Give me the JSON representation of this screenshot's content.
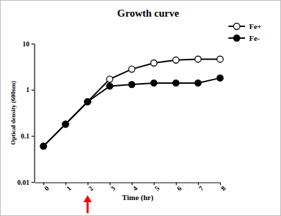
{
  "chart_data": {
    "type": "line",
    "title": "Growth curve",
    "x_label": "Time (hr)",
    "y_label": "Optical density (600nm)",
    "x": [
      0,
      1,
      2,
      3,
      4,
      5,
      6,
      7,
      8
    ],
    "xlim": [
      -0.4,
      8
    ],
    "xticks": [
      0,
      1,
      2,
      3,
      4,
      5,
      6,
      7,
      8
    ],
    "ylim": [
      0.01,
      10
    ],
    "yticks": [
      0.01,
      0.1,
      1,
      10
    ],
    "log": "y",
    "grid": false,
    "legend": "right",
    "series": [
      {
        "name": "Fe+",
        "color": "#000000",
        "marker": "circle-open",
        "line_style": "solid",
        "values": [
          0.06,
          0.18,
          0.55,
          1.7,
          2.8,
          3.8,
          4.4,
          4.6,
          4.6
        ]
      },
      {
        "name": "Fe-",
        "color": "#000000",
        "marker": "circle",
        "line_style": "solid",
        "values": [
          0.06,
          0.18,
          0.55,
          1.2,
          1.3,
          1.4,
          1.4,
          1.4,
          1.8
        ]
      }
    ],
    "annotations": [
      {
        "x": 2,
        "marker": "arrow",
        "color": "#ff0000"
      }
    ]
  }
}
